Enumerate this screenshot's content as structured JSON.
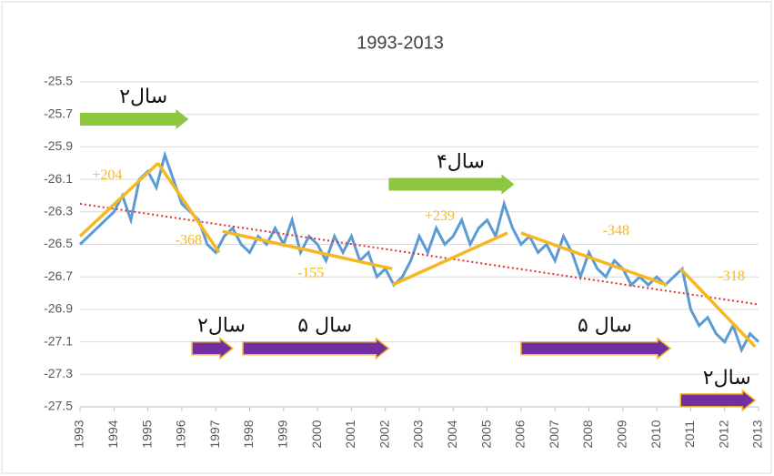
{
  "chart_data": {
    "type": "line",
    "title": "1993-2013",
    "x": [
      1993,
      1993.25,
      1993.5,
      1993.75,
      1994,
      1994.25,
      1994.5,
      1994.75,
      1995,
      1995.25,
      1995.5,
      1995.75,
      1996,
      1996.25,
      1996.5,
      1996.75,
      1997,
      1997.25,
      1997.5,
      1997.75,
      1998,
      1998.25,
      1998.5,
      1998.75,
      1999,
      1999.25,
      1999.5,
      1999.75,
      2000,
      2000.25,
      2000.5,
      2000.75,
      2001,
      2001.25,
      2001.5,
      2001.75,
      2002,
      2002.25,
      2002.5,
      2002.75,
      2003,
      2003.25,
      2003.5,
      2003.75,
      2004,
      2004.25,
      2004.5,
      2004.75,
      2005,
      2005.25,
      2005.5,
      2005.75,
      2006,
      2006.25,
      2006.5,
      2006.75,
      2007,
      2007.25,
      2007.5,
      2007.75,
      2008,
      2008.25,
      2008.5,
      2008.75,
      2009,
      2009.25,
      2009.5,
      2009.75,
      2010,
      2010.25,
      2010.5,
      2010.75,
      2011,
      2011.25,
      2011.5,
      2011.75,
      2012,
      2012.25,
      2012.5,
      2012.75,
      2013
    ],
    "series": [
      {
        "color": "#5b9bd5",
        "values": [
          -26.5,
          -26.45,
          -26.4,
          -26.35,
          -26.3,
          -26.2,
          -26.35,
          -26.1,
          -26.05,
          -26.15,
          -25.95,
          -26.1,
          -26.25,
          -26.3,
          -26.35,
          -26.5,
          -26.55,
          -26.45,
          -26.4,
          -26.5,
          -26.55,
          -26.45,
          -26.5,
          -26.4,
          -26.5,
          -26.35,
          -26.55,
          -26.45,
          -26.5,
          -26.6,
          -26.45,
          -26.55,
          -26.45,
          -26.6,
          -26.55,
          -26.7,
          -26.65,
          -26.75,
          -26.7,
          -26.6,
          -26.45,
          -26.55,
          -26.4,
          -26.5,
          -26.45,
          -26.35,
          -26.5,
          -26.4,
          -26.35,
          -26.45,
          -26.25,
          -26.4,
          -26.5,
          -26.45,
          -26.55,
          -26.5,
          -26.6,
          -26.45,
          -26.55,
          -26.7,
          -26.55,
          -26.65,
          -26.7,
          -26.6,
          -26.65,
          -26.75,
          -26.7,
          -26.75,
          -26.7,
          -26.75,
          -26.7,
          -26.65,
          -26.9,
          -27.0,
          -26.95,
          -27.05,
          -27.1,
          -27.0,
          -27.15,
          -27.05,
          -27.1
        ]
      }
    ],
    "xlim": [
      1993,
      2013
    ],
    "xticks": [
      1993,
      1994,
      1995,
      1996,
      1997,
      1998,
      1999,
      2000,
      2001,
      2002,
      2003,
      2004,
      2005,
      2006,
      2007,
      2008,
      2009,
      2010,
      2011,
      2012,
      2013
    ],
    "ylim": [
      -27.5,
      -25.5
    ],
    "yticks": [
      -27.5,
      -27.3,
      -27.1,
      -26.9,
      -26.7,
      -26.5,
      -26.3,
      -26.1,
      -25.9,
      -25.7,
      -25.5
    ],
    "grid": true,
    "trend": {
      "color": "#e03030",
      "x": [
        1993,
        2013
      ],
      "y": [
        -26.25,
        -26.87
      ]
    },
    "segments": [
      {
        "label": "+204",
        "x": [
          1993,
          1995.3
        ],
        "y": [
          -26.45,
          -26.0
        ],
        "label_x": 1993.8,
        "label_y": -26.08
      },
      {
        "label": "-368",
        "x": [
          1995.3,
          1997.1
        ],
        "y": [
          -26.0,
          -26.55
        ],
        "label_x": 1996.2,
        "label_y": -26.48
      },
      {
        "label": "-155",
        "x": [
          1997.2,
          2002.2
        ],
        "y": [
          -26.42,
          -26.65
        ],
        "label_x": 1999.8,
        "label_y": -26.68
      },
      {
        "label": "+239",
        "x": [
          2002.2,
          2005.6
        ],
        "y": [
          -26.75,
          -26.43
        ],
        "label_x": 2003.6,
        "label_y": -26.33
      },
      {
        "label": "-348",
        "x": [
          2006,
          2010.3
        ],
        "y": [
          -26.43,
          -26.75
        ],
        "label_x": 2008.8,
        "label_y": -26.42
      },
      {
        "label": "-318",
        "x": [
          2010.7,
          2012.9
        ],
        "y": [
          -26.65,
          -27.13
        ],
        "label_x": 2012.2,
        "label_y": -26.7
      }
    ],
    "segment_color": "#f5b822",
    "arrows": [
      {
        "label": "۲سال",
        "color": "#8dc63f",
        "x": [
          1993,
          1996.2
        ],
        "y": -25.73
      },
      {
        "label": "۴سال",
        "color": "#8dc63f",
        "x": [
          2002.1,
          2005.8
        ],
        "y": -26.13
      },
      {
        "label": "۲سال",
        "color": "#7030a0",
        "x": [
          1996.3,
          1997.5
        ],
        "y": -27.14
      },
      {
        "label": "۵ سال",
        "color": "#7030a0",
        "x": [
          1997.8,
          2002.1
        ],
        "y": -27.14
      },
      {
        "label": "۵ سال",
        "color": "#7030a0",
        "x": [
          2006,
          2010.4
        ],
        "y": -27.14
      },
      {
        "label": "۲سال",
        "color": "#7030a0",
        "x": [
          2010.7,
          2012.9
        ],
        "y": -27.46
      }
    ]
  }
}
